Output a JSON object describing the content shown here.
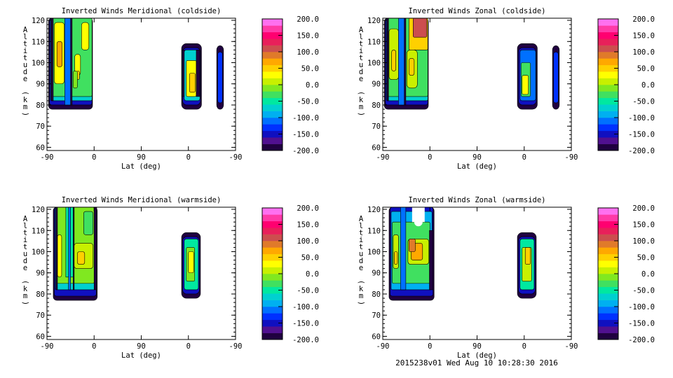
{
  "chart_data": [
    {
      "type": "heatmap",
      "title": "Inverted Winds Meridional (coldside)",
      "xlabel": "Lat (deg)",
      "ylabel": "Altitude (km)",
      "xticks": [
        "-90",
        "0",
        "90",
        "0",
        "-90"
      ],
      "yticks": [
        "60",
        "70",
        "80",
        "90",
        "100",
        "110",
        "120"
      ],
      "ylim": [
        58.5,
        121
      ],
      "colorbar": {
        "range": [
          -200,
          200
        ],
        "ticks": [
          "200.0",
          "150.0",
          "100.0",
          "50.0",
          "0.0",
          "-50.0",
          "-100.0",
          "-150.0",
          "-200.0"
        ]
      },
      "regions": [
        [
          3,
          87,
          78,
          121,
          -185,
          5
        ],
        [
          5,
          86,
          80,
          121,
          -150,
          3
        ],
        [
          7,
          86,
          82,
          121,
          -70,
          2
        ],
        [
          9,
          86,
          84,
          121,
          -25,
          2
        ],
        [
          14,
          33,
          90,
          119,
          20,
          4
        ],
        [
          19,
          29,
          98,
          110,
          60,
          3
        ],
        [
          34,
          46,
          80,
          121,
          -105,
          0
        ],
        [
          8,
          12,
          82,
          121,
          -200,
          0
        ],
        [
          45,
          48,
          80,
          121,
          -200,
          0
        ],
        [
          66,
          80,
          106,
          119,
          20,
          4
        ],
        [
          53,
          64,
          94,
          104,
          20,
          4
        ],
        [
          57,
          62,
          92,
          96,
          45,
          2
        ],
        [
          50,
          58,
          88,
          96,
          -10,
          2
        ],
        [
          257,
          295,
          78,
          109,
          -185,
          7
        ],
        [
          259,
          293,
          80,
          107,
          -145,
          6
        ],
        [
          262,
          292,
          82,
          106,
          -70,
          3
        ],
        [
          266,
          285,
          84,
          101,
          25,
          2
        ],
        [
          272,
          283,
          86,
          95,
          55,
          2
        ],
        [
          258,
          262,
          84,
          106,
          -200,
          0
        ],
        [
          285,
          292,
          84,
          106,
          -200,
          0
        ],
        [
          324,
          337,
          78,
          108,
          -185,
          6
        ],
        [
          326,
          335,
          81,
          105,
          -140,
          3
        ]
      ]
    },
    {
      "type": "heatmap",
      "title": "Inverted Winds Zonal (coldside)",
      "xlabel": "Lat (deg)",
      "ylabel": "Altitude (km)",
      "xticks": [
        "-90",
        "0",
        "90",
        "0",
        "-90"
      ],
      "yticks": [
        "60",
        "70",
        "80",
        "90",
        "100",
        "110",
        "120"
      ],
      "ylim": [
        58.5,
        121
      ],
      "colorbar": {
        "range": [
          -200,
          200
        ],
        "ticks": [
          "200.0",
          "150.0",
          "100.0",
          "50.0",
          "0.0",
          "-50.0",
          "-100.0",
          "-150.0",
          "-200.0"
        ]
      },
      "regions": [
        [
          3,
          87,
          78,
          121,
          -185,
          5
        ],
        [
          5,
          86,
          80,
          121,
          -150,
          3
        ],
        [
          7,
          86,
          82,
          121,
          -70,
          2
        ],
        [
          9,
          86,
          84,
          121,
          -30,
          2
        ],
        [
          12,
          30,
          92,
          116,
          10,
          4
        ],
        [
          17,
          25,
          96,
          106,
          40,
          3
        ],
        [
          30,
          42,
          80,
          121,
          -110,
          0
        ],
        [
          8,
          11,
          82,
          121,
          -200,
          0
        ],
        [
          41,
          44,
          80,
          121,
          -200,
          0
        ],
        [
          50,
          86,
          106,
          121,
          40,
          2
        ],
        [
          58,
          84,
          112,
          121,
          100,
          2
        ],
        [
          46,
          66,
          88,
          106,
          15,
          5
        ],
        [
          50,
          60,
          94,
          102,
          50,
          3
        ],
        [
          257,
          295,
          78,
          109,
          -185,
          7
        ],
        [
          259,
          293,
          80,
          107,
          -150,
          6
        ],
        [
          262,
          292,
          82,
          106,
          -110,
          3
        ],
        [
          264,
          282,
          84,
          100,
          -30,
          2
        ],
        [
          266,
          278,
          85,
          94,
          20,
          2
        ],
        [
          324,
          337,
          78,
          108,
          -185,
          6
        ],
        [
          326,
          335,
          81,
          105,
          -140,
          3
        ]
      ]
    },
    {
      "type": "heatmap",
      "title": "Inverted Winds Meridional (warmside)",
      "xlabel": "Lat (deg)",
      "ylabel": "Altitude (km)",
      "xticks": [
        "-90",
        "0",
        "90",
        "0",
        "-90"
      ],
      "yticks": [
        "60",
        "70",
        "80",
        "90",
        "100",
        "110",
        "120"
      ],
      "ylim": [
        58.5,
        121
      ],
      "colorbar": {
        "range": [
          -200,
          200
        ],
        "ticks": [
          "200.0",
          "150.0",
          "100.0",
          "50.0",
          "0.0",
          "-50.0",
          "-100.0",
          "-150.0",
          "-200.0"
        ]
      },
      "regions": [
        [
          12,
          96,
          77,
          121,
          -185,
          5
        ],
        [
          14,
          94,
          79,
          121,
          -150,
          3
        ],
        [
          16,
          92,
          82,
          121,
          -70,
          2
        ],
        [
          18,
          90,
          85,
          121,
          -20,
          2
        ],
        [
          20,
          28,
          88,
          108,
          25,
          3
        ],
        [
          36,
          50,
          88,
          121,
          -60,
          0
        ],
        [
          41,
          45,
          82,
          121,
          -110,
          0
        ],
        [
          17,
          20,
          82,
          121,
          -200,
          0
        ],
        [
          50,
          52,
          82,
          121,
          -200,
          0
        ],
        [
          90,
          95,
          82,
          121,
          -200,
          0
        ],
        [
          52,
          88,
          92,
          104,
          15,
          4
        ],
        [
          58,
          72,
          94,
          100,
          45,
          3
        ],
        [
          70,
          88,
          108,
          119,
          -40,
          3
        ],
        [
          257,
          293,
          78,
          109,
          -185,
          7
        ],
        [
          259,
          291,
          80,
          107,
          -145,
          6
        ],
        [
          262,
          289,
          82,
          106,
          -60,
          3
        ],
        [
          266,
          282,
          86,
          102,
          -10,
          2
        ],
        [
          270,
          280,
          90,
          100,
          20,
          2
        ]
      ]
    },
    {
      "type": "heatmap",
      "title": "Inverted Winds Zonal (warmside)",
      "xlabel": "Lat (deg)",
      "ylabel": "Altitude (km)",
      "xticks": [
        "-90",
        "0",
        "90",
        "0",
        "-90"
      ],
      "yticks": [
        "60",
        "70",
        "80",
        "90",
        "100",
        "110",
        "120"
      ],
      "ylim": [
        58.5,
        121
      ],
      "colorbar": {
        "range": [
          -200,
          200
        ],
        "ticks": [
          "200.0",
          "150.0",
          "100.0",
          "50.0",
          "0.0",
          "-50.0",
          "-100.0",
          "-150.0",
          "-200.0"
        ]
      },
      "regions": [
        [
          12,
          98,
          77,
          121,
          -185,
          5
        ],
        [
          14,
          96,
          79,
          121,
          -150,
          3
        ],
        [
          16,
          94,
          82,
          119,
          -100,
          2
        ],
        [
          18,
          90,
          85,
          114,
          -40,
          2
        ],
        [
          20,
          30,
          92,
          108,
          15,
          3
        ],
        [
          22,
          28,
          94,
          100,
          55,
          2
        ],
        [
          34,
          44,
          82,
          121,
          -120,
          0
        ],
        [
          48,
          88,
          94,
          106,
          15,
          4
        ],
        [
          54,
          76,
          96,
          104,
          60,
          3
        ],
        [
          50,
          62,
          100,
          106,
          80,
          2
        ],
        [
          56,
          80,
          114,
          121,
          -1000,
          0
        ],
        [
          60,
          76,
          112,
          121,
          -1000,
          6
        ],
        [
          89,
          96,
          82,
          110,
          -200,
          0
        ],
        [
          257,
          293,
          78,
          109,
          -185,
          7
        ],
        [
          259,
          291,
          80,
          107,
          -145,
          6
        ],
        [
          262,
          289,
          82,
          106,
          -60,
          3
        ],
        [
          266,
          284,
          86,
          102,
          0,
          2
        ],
        [
          272,
          282,
          94,
          102,
          40,
          2
        ]
      ]
    }
  ],
  "footer": "2015238v01 Wed Aug 10 10:28:30 2016",
  "colors": [
    "#200040",
    "#501090",
    "#1010c0",
    "#0030ff",
    "#0070ff",
    "#00b0f0",
    "#00d0d0",
    "#00e8a0",
    "#40e060",
    "#80e820",
    "#c8f000",
    "#ffff00",
    "#ffd000",
    "#ffa800",
    "#e07a2a",
    "#cc4e4e",
    "#e8205a",
    "#ff0070",
    "#ff3aa8",
    "#ff70f0"
  ]
}
